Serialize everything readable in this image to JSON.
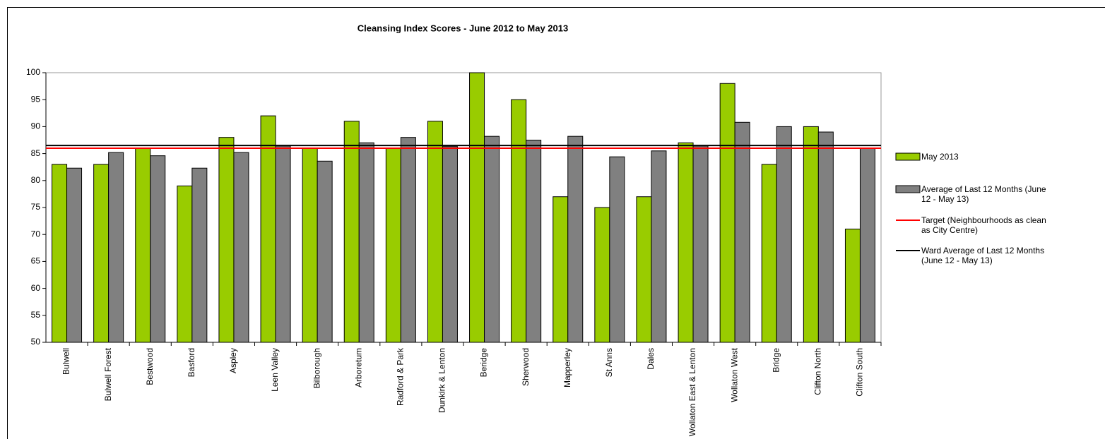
{
  "chart_data": {
    "type": "bar",
    "title": "Cleansing Index Scores - June 2012 to May 2013",
    "categories": [
      "Bulwell",
      "Bulwell Forest",
      "Bestwood",
      "Basford",
      "Aspley",
      "Leen Valley",
      "Bilborough",
      "Arboretum",
      "Radford & Park",
      "Dunkirk & Lenton",
      "Beridge",
      "Sherwood",
      "Mapperley",
      "St Anns",
      "Dales",
      "Wollaton East & Lenton",
      "Wollaton West",
      "Bridge",
      "Clifton North",
      "Clifton South"
    ],
    "series": [
      {
        "name": "May 2013",
        "color": "#99cc00",
        "values": [
          83,
          83,
          86,
          79,
          88,
          92,
          86,
          91,
          86,
          91,
          100,
          95,
          77,
          75,
          77,
          87,
          98,
          83,
          90,
          71
        ]
      },
      {
        "name": "Average of Last 12 Months (June 12 - May 13)",
        "color": "#808080",
        "values": [
          82.3,
          85.2,
          84.6,
          82.3,
          85.2,
          86.4,
          83.6,
          87,
          88,
          86.3,
          88.2,
          87.5,
          88.2,
          84.4,
          85.5,
          86.4,
          90.8,
          90,
          89,
          86
        ]
      }
    ],
    "reference_lines": [
      {
        "name": "Target (Neighbourhoods as clean as City Centre)",
        "color": "#ff0000",
        "value": 86
      },
      {
        "name": "Ward Average of Last 12 Months (June 12 - May 13)",
        "color": "#000000",
        "value": 86.5
      }
    ],
    "ylim": [
      50,
      100
    ],
    "yticks": [
      50,
      55,
      60,
      65,
      70,
      75,
      80,
      85,
      90,
      95,
      100
    ],
    "grid": false,
    "legend": "right"
  }
}
